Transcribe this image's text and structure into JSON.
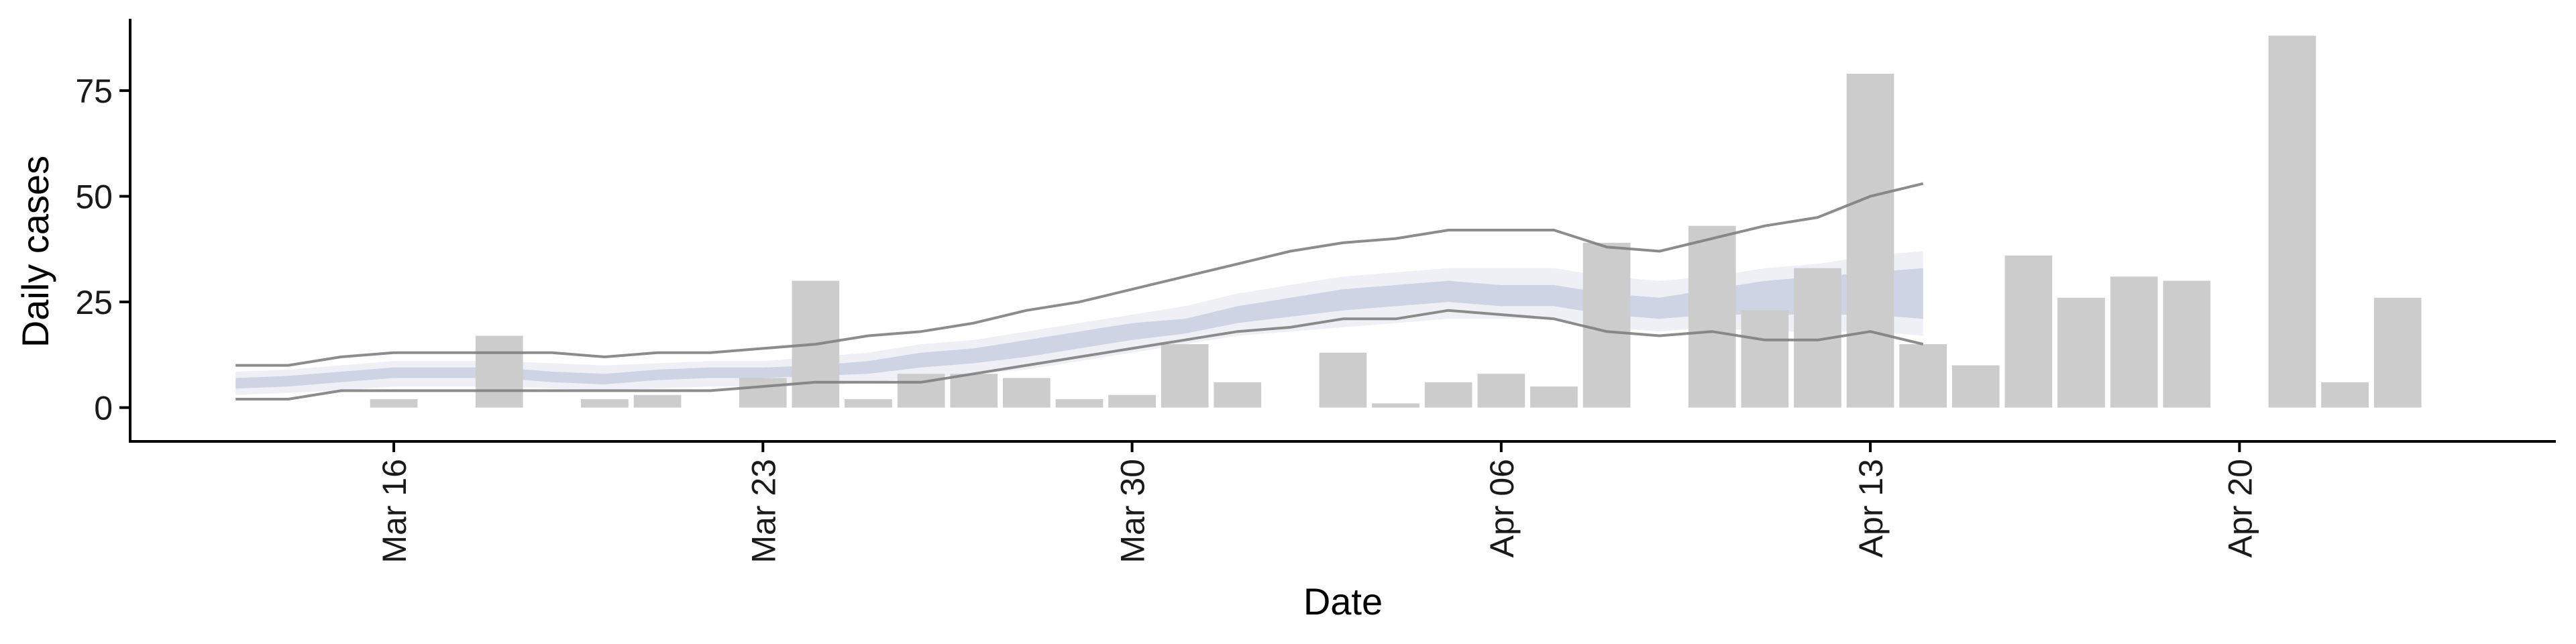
{
  "chart_data": {
    "type": "bar",
    "xlabel": "Date",
    "ylabel": "Daily cases",
    "ylim": [
      -8,
      92
    ],
    "y_ticks": [
      0,
      25,
      50,
      75
    ],
    "x_ticks": [
      {
        "date": "2020-03-16",
        "label": "Mar 16"
      },
      {
        "date": "2020-03-23",
        "label": "Mar 23"
      },
      {
        "date": "2020-03-30",
        "label": "Mar 30"
      },
      {
        "date": "2020-04-06",
        "label": "Apr 06"
      },
      {
        "date": "2020-04-13",
        "label": "Apr 13"
      },
      {
        "date": "2020-04-20",
        "label": "Apr 20"
      }
    ],
    "x_range": [
      "2020-03-11",
      "2020-04-26"
    ],
    "grid": false,
    "legend": "none",
    "colors": {
      "bars": "#cccccc",
      "band_outer": "#eff0f6",
      "band_inner": "#ced4e3",
      "interval_lines": "#808080",
      "axis": "#000000"
    },
    "bars": [
      {
        "date": "2020-03-16",
        "value": 2
      },
      {
        "date": "2020-03-18",
        "value": 17
      },
      {
        "date": "2020-03-20",
        "value": 2
      },
      {
        "date": "2020-03-21",
        "value": 3
      },
      {
        "date": "2020-03-23",
        "value": 7
      },
      {
        "date": "2020-03-24",
        "value": 30
      },
      {
        "date": "2020-03-25",
        "value": 2
      },
      {
        "date": "2020-03-26",
        "value": 8
      },
      {
        "date": "2020-03-27",
        "value": 8
      },
      {
        "date": "2020-03-28",
        "value": 7
      },
      {
        "date": "2020-03-29",
        "value": 2
      },
      {
        "date": "2020-03-30",
        "value": 3
      },
      {
        "date": "2020-03-31",
        "value": 15
      },
      {
        "date": "2020-04-01",
        "value": 6
      },
      {
        "date": "2020-04-03",
        "value": 13
      },
      {
        "date": "2020-04-04",
        "value": 1
      },
      {
        "date": "2020-04-05",
        "value": 6
      },
      {
        "date": "2020-04-06",
        "value": 8
      },
      {
        "date": "2020-04-07",
        "value": 5
      },
      {
        "date": "2020-04-08",
        "value": 39
      },
      {
        "date": "2020-04-10",
        "value": 43
      },
      {
        "date": "2020-04-11",
        "value": 23
      },
      {
        "date": "2020-04-12",
        "value": 33
      },
      {
        "date": "2020-04-13",
        "value": 79
      },
      {
        "date": "2020-04-14",
        "value": 15
      },
      {
        "date": "2020-04-15",
        "value": 10
      },
      {
        "date": "2020-04-16",
        "value": 36
      },
      {
        "date": "2020-04-17",
        "value": 26
      },
      {
        "date": "2020-04-18",
        "value": 31
      },
      {
        "date": "2020-04-19",
        "value": 30
      },
      {
        "date": "2020-04-21",
        "value": 88
      },
      {
        "date": "2020-04-22",
        "value": 6
      },
      {
        "date": "2020-04-23",
        "value": 26
      }
    ],
    "interval_bounds": {
      "dates": [
        "2020-03-13",
        "2020-03-14",
        "2020-03-15",
        "2020-03-16",
        "2020-03-17",
        "2020-03-18",
        "2020-03-19",
        "2020-03-20",
        "2020-03-21",
        "2020-03-22",
        "2020-03-23",
        "2020-03-24",
        "2020-03-25",
        "2020-03-26",
        "2020-03-27",
        "2020-03-28",
        "2020-03-29",
        "2020-03-30",
        "2020-03-31",
        "2020-04-01",
        "2020-04-02",
        "2020-04-03",
        "2020-04-04",
        "2020-04-05",
        "2020-04-06",
        "2020-04-07",
        "2020-04-08",
        "2020-04-09",
        "2020-04-10",
        "2020-04-11",
        "2020-04-12",
        "2020-04-13",
        "2020-04-14"
      ],
      "upper": [
        10,
        10,
        12,
        13,
        13,
        13,
        13,
        12,
        13,
        13,
        14,
        15,
        17,
        18,
        20,
        23,
        25,
        28,
        31,
        34,
        37,
        39,
        40,
        42,
        42,
        42,
        38,
        37,
        40,
        43,
        45,
        50,
        53
      ],
      "lower": [
        2,
        2,
        4,
        4,
        4,
        4,
        4,
        4,
        4,
        4,
        5,
        6,
        6,
        6,
        8,
        10,
        12,
        14,
        16,
        18,
        19,
        21,
        21,
        23,
        22,
        21,
        18,
        17,
        18,
        16,
        16,
        18,
        15
      ]
    },
    "band_outer": {
      "dates": [
        "2020-03-13",
        "2020-03-14",
        "2020-03-15",
        "2020-03-16",
        "2020-03-17",
        "2020-03-18",
        "2020-03-19",
        "2020-03-20",
        "2020-03-21",
        "2020-03-22",
        "2020-03-23",
        "2020-03-24",
        "2020-03-25",
        "2020-03-26",
        "2020-03-27",
        "2020-03-28",
        "2020-03-29",
        "2020-03-30",
        "2020-03-31",
        "2020-04-01",
        "2020-04-02",
        "2020-04-03",
        "2020-04-04",
        "2020-04-05",
        "2020-04-06",
        "2020-04-07",
        "2020-04-08",
        "2020-04-09",
        "2020-04-10",
        "2020-04-11",
        "2020-04-12",
        "2020-04-13",
        "2020-04-14"
      ],
      "upper": [
        8.5,
        9,
        10,
        11,
        11,
        11,
        10.5,
        10,
        10.5,
        11,
        11,
        12,
        13,
        15,
        16,
        18,
        20,
        22,
        24,
        27,
        29,
        31,
        32,
        33,
        33,
        33,
        31,
        30,
        31,
        33,
        34,
        36,
        37
      ],
      "lower": [
        3,
        3.5,
        4,
        5,
        5,
        5,
        4.5,
        4,
        4.5,
        5,
        5,
        5,
        6,
        7,
        8,
        9,
        11,
        13,
        15,
        17,
        18,
        19,
        20,
        21,
        21,
        21,
        19,
        18,
        19,
        18,
        18,
        18,
        17
      ]
    },
    "band_inner": {
      "dates": [
        "2020-03-13",
        "2020-03-14",
        "2020-03-15",
        "2020-03-16",
        "2020-03-17",
        "2020-03-18",
        "2020-03-19",
        "2020-03-20",
        "2020-03-21",
        "2020-03-22",
        "2020-03-23",
        "2020-03-24",
        "2020-03-25",
        "2020-03-26",
        "2020-03-27",
        "2020-03-28",
        "2020-03-29",
        "2020-03-30",
        "2020-03-31",
        "2020-04-01",
        "2020-04-02",
        "2020-04-03",
        "2020-04-04",
        "2020-04-05",
        "2020-04-06",
        "2020-04-07",
        "2020-04-08",
        "2020-04-09",
        "2020-04-10",
        "2020-04-11",
        "2020-04-12",
        "2020-04-13",
        "2020-04-14"
      ],
      "upper": [
        7,
        7.5,
        8.5,
        9.5,
        9.5,
        9.5,
        8.5,
        8,
        9,
        9.5,
        9.5,
        10,
        11,
        13,
        14,
        16,
        18,
        20,
        21,
        24,
        26,
        28,
        29,
        30,
        29,
        29,
        27,
        26,
        28,
        30,
        31,
        32,
        33
      ],
      "lower": [
        4.5,
        5,
        6,
        7,
        7,
        7,
        6,
        5.5,
        6.5,
        7,
        7,
        7.5,
        8,
        9.5,
        10.5,
        12,
        14,
        16,
        17.5,
        20,
        21.5,
        23,
        24,
        25,
        24,
        24,
        22,
        21,
        22,
        22,
        22,
        22,
        21
      ]
    }
  }
}
